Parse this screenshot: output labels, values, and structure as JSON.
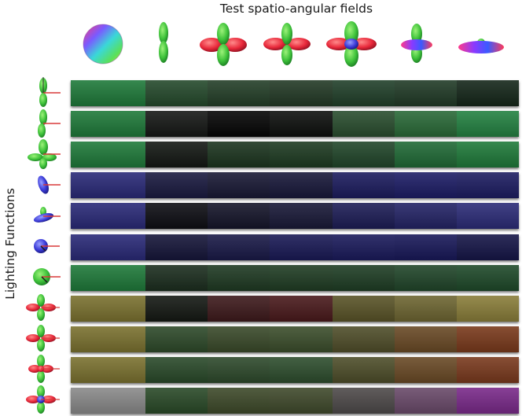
{
  "figure": {
    "top_title": "Test spatio-angular fields",
    "side_title": "Lighting Functions"
  },
  "field_icons": [
    "isotropic-sphere",
    "vertical-dipole",
    "four-lobe",
    "four-lobe",
    "four-lobe",
    "four-lobe-disc",
    "flat-disc"
  ],
  "lighting_icons": [
    "y-dipole",
    "y-dipole-tilted",
    "four-lobe-green",
    "blue-lobe",
    "blue-disc",
    "blue-sphere-small",
    "green-sphere",
    "red-green-quad",
    "red-green-quad",
    "red-green-quad-dot",
    "red-green-quad-blue-dot"
  ],
  "colors": {
    "swatches": [
      [
        "#1f7a3a",
        "#254a2c",
        "#243f28",
        "#233a26",
        "#21402a",
        "#213b27",
        "#15271a"
      ],
      [
        "#1f7a3a",
        "#161816",
        "#060606",
        "#0e100e",
        "#2a4e2f",
        "#2a6a38",
        "#248242"
      ],
      [
        "#1f7a3a",
        "#141814",
        "#1c351f",
        "#1e3b22",
        "#21462a",
        "#206a36",
        "#1f7a3a"
      ],
      [
        "#2a2a78",
        "#1a1a40",
        "#191935",
        "#18183a",
        "#1c1c5e",
        "#1d1d66",
        "#1d1d62"
      ],
      [
        "#2a2a78",
        "#0e0e14",
        "#15152a",
        "#191938",
        "#1d1d56",
        "#242466",
        "#2c2c78"
      ],
      [
        "#2a2a78",
        "#16163a",
        "#1a1a48",
        "#1a1a56",
        "#1b1b5c",
        "#19195a",
        "#161648"
      ],
      [
        "#1f7a3a",
        "#1c2e1f",
        "#1f3a23",
        "#203d24",
        "#1f3e25",
        "#21462a",
        "#1f4a2a"
      ],
      [
        "#7b7230",
        "#151914",
        "#3e1a1c",
        "#4a1a1c",
        "#5a5428",
        "#6e6632",
        "#8a7e3a"
      ],
      [
        "#7b7230",
        "#2e4a2a",
        "#3a4a2a",
        "#3c4e2c",
        "#504e2a",
        "#6a4a26",
        "#7a3a1c"
      ],
      [
        "#7b7230",
        "#2a4a2a",
        "#2e4a2c",
        "#2e4e2e",
        "#4e4e2a",
        "#6a4a26",
        "#7a3a1e"
      ],
      [
        "#8a8a8a",
        "#2a4a28",
        "#3e4a2a",
        "#404a2c",
        "#4e4a4a",
        "#6a4a6a",
        "#7a2a8a"
      ]
    ]
  }
}
